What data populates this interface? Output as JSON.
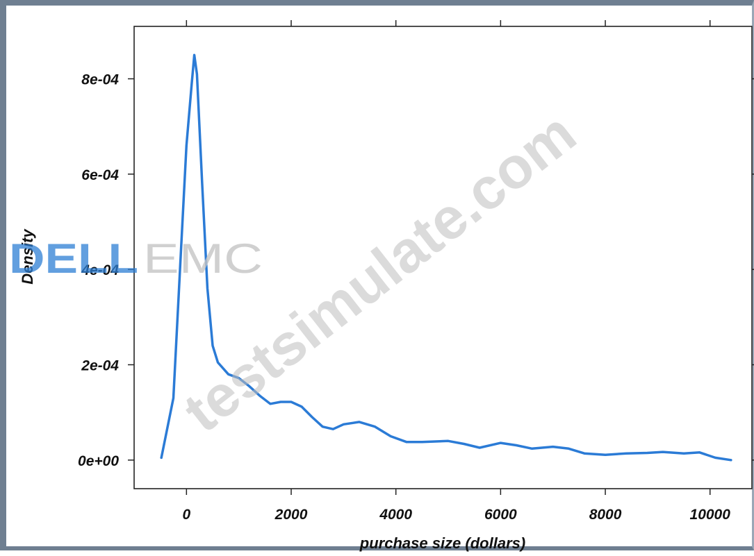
{
  "chart_data": {
    "type": "line",
    "xlabel": "purchase size (dollars)",
    "ylabel": "Density",
    "xlim": [
      -1000,
      10800
    ],
    "ylim": [
      -6e-05,
      0.00091
    ],
    "x_ticks": [
      0,
      2000,
      4000,
      6000,
      8000,
      10000
    ],
    "x_tick_labels": [
      "0",
      "2000",
      "4000",
      "6000",
      "8000",
      "10000"
    ],
    "y_ticks": [
      0,
      0.0002,
      0.0004,
      0.0006,
      0.0008
    ],
    "y_tick_labels": [
      "0e+00",
      "2e-04",
      "4e-04",
      "6e-04",
      "8e-04"
    ],
    "line_color": "#2b7bd6",
    "grid": false,
    "series": [
      {
        "x": [
          -480,
          -250,
          -100,
          0,
          100,
          150,
          200,
          300,
          400,
          500,
          600,
          800,
          1000,
          1200,
          1400,
          1600,
          1800,
          2000,
          2200,
          2400,
          2600,
          2800,
          3000,
          3300,
          3600,
          3900,
          4200,
          4500,
          5000,
          5300,
          5600,
          6000,
          6300,
          6600,
          7000,
          7300,
          7600,
          8000,
          8400,
          8800,
          9100,
          9500,
          9800,
          10100,
          10400
        ],
        "y": [
          5e-06,
          0.00013,
          0.00045,
          0.00066,
          0.00079,
          0.00085,
          0.00081,
          0.00058,
          0.00036,
          0.00024,
          0.000205,
          0.00018,
          0.000172,
          0.000155,
          0.000135,
          0.000118,
          0.000122,
          0.000122,
          0.000112,
          9e-05,
          7e-05,
          6.5e-05,
          7.5e-05,
          8e-05,
          7e-05,
          5e-05,
          3.8e-05,
          3.8e-05,
          4e-05,
          3.4e-05,
          2.6e-05,
          3.6e-05,
          3.1e-05,
          2.4e-05,
          2.8e-05,
          2.4e-05,
          1.4e-05,
          1.1e-05,
          1.4e-05,
          1.5e-05,
          1.7e-05,
          1.4e-05,
          1.6e-05,
          5e-06,
          0.0
        ]
      }
    ]
  },
  "watermark": {
    "text": "testsimulate.com"
  },
  "logo": {
    "text": "DELL EMC",
    "dell_color": "#2d7fd4",
    "emc_color": "#c4c4c4"
  }
}
